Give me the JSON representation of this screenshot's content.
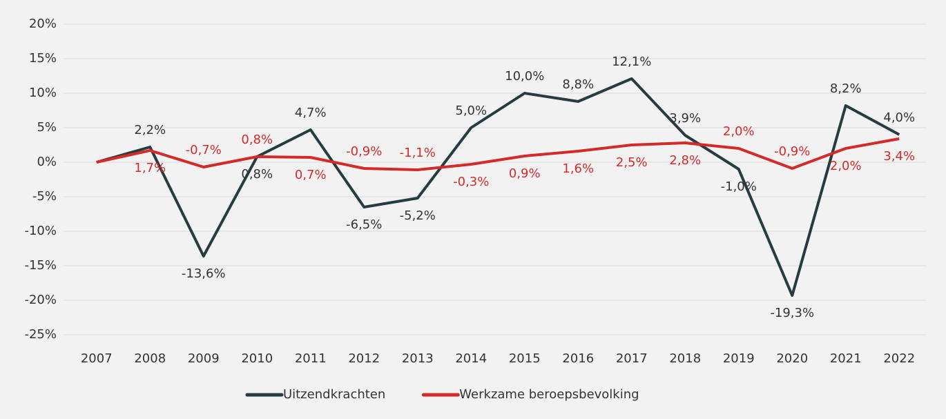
{
  "chart_data": {
    "type": "line",
    "categories": [
      "2007",
      "2008",
      "2009",
      "2010",
      "2011",
      "2012",
      "2013",
      "2014",
      "2015",
      "2016",
      "2017",
      "2018",
      "2019",
      "2020",
      "2021",
      "2022"
    ],
    "series": [
      {
        "name": "Uitzendkrachten",
        "color": "#263c41",
        "values": [
          0,
          2.2,
          -13.6,
          0.8,
          4.7,
          -6.5,
          -5.2,
          5.0,
          10.0,
          8.8,
          12.1,
          3.9,
          -1.0,
          -19.3,
          8.2,
          4.0
        ],
        "value_labels": [
          null,
          "2,2%",
          "-13,6%",
          "0,8%",
          "4,7%",
          "-6,5%",
          "-5,2%",
          "5,0%",
          "10,0%",
          "8,8%",
          "12,1%",
          "3,9%",
          "-1,0%",
          "-19,3%",
          "8,2%",
          "4,0%"
        ]
      },
      {
        "name": "Werkzame beroepsbevolking",
        "color": "#d42a2a",
        "values": [
          0,
          1.7,
          -0.7,
          0.8,
          0.7,
          -0.9,
          -1.1,
          -0.3,
          0.9,
          1.6,
          2.5,
          2.8,
          2.0,
          -0.9,
          2.0,
          3.4
        ],
        "value_labels": [
          null,
          "1,7%",
          "-0,7%",
          "0,8%",
          "0,7%",
          "-0,9%",
          "-1,1%",
          "-0,3%",
          "0,9%",
          "1,6%",
          "2,5%",
          "2,8%",
          "2,0%",
          "-0,9%",
          "2,0%",
          "3,4%"
        ]
      }
    ],
    "ylim": [
      -25,
      20
    ],
    "yticks": [
      {
        "value": -25,
        "label": "-25%"
      },
      {
        "value": -20,
        "label": "-20%"
      },
      {
        "value": -15,
        "label": "-15%"
      },
      {
        "value": -10,
        "label": "-10%"
      },
      {
        "value": -5,
        "label": "-5%"
      },
      {
        "value": 0,
        "label": "0%"
      },
      {
        "value": 5,
        "label": "5%"
      },
      {
        "value": 10,
        "label": "10%"
      },
      {
        "value": 15,
        "label": "15%"
      },
      {
        "value": 20,
        "label": "20%"
      }
    ],
    "grid": true,
    "legend": "bottom"
  }
}
